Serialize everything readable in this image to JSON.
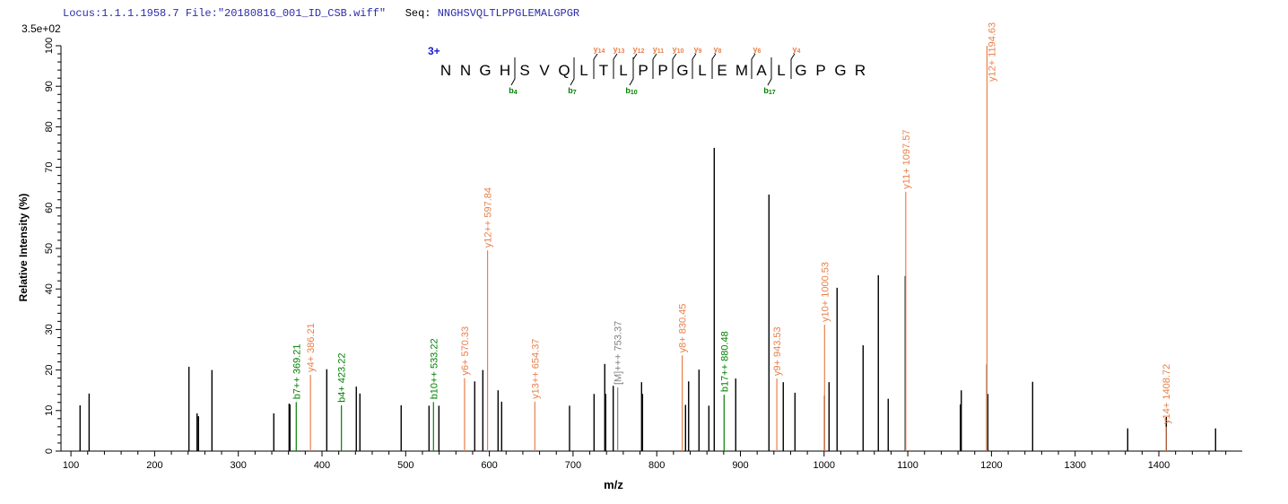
{
  "header": {
    "locus": "Locus:1.1.1.1958.7",
    "file_label": "File:",
    "file": "\"20180816_001_ID_CSB.wiff\"",
    "seq_label": "Seq:",
    "sequence": "NNGHSVQLTLPPGLEMALGPGR"
  },
  "colors": {
    "y_ion": "#e8804a",
    "b_ion": "#008000",
    "precursor": "#808080",
    "other": "#000000",
    "header": "#2b2bb0"
  },
  "chart_data": {
    "type": "bar",
    "subtype": "mass-spectrum",
    "max_intensity_label": "3.5e+02",
    "xlabel": "m/z",
    "ylabel": "Relative  Intensity (%)",
    "xlim": [
      88,
      1500
    ],
    "ylim": [
      0,
      100
    ],
    "xticks": [
      "100",
      "200",
      "300",
      "400",
      "500",
      "600",
      "700",
      "800",
      "900",
      "1000",
      "1100",
      "1200",
      "1300",
      "1400"
    ],
    "yticks": [
      "0",
      "10",
      "20",
      "30",
      "40",
      "50",
      "60",
      "70",
      "80",
      "90",
      "100"
    ],
    "grid": false,
    "fragment_map": {
      "charge": "3+",
      "residues": [
        "N",
        "N",
        "G",
        "H",
        "S",
        "V",
        "Q",
        "L",
        "T",
        "L",
        "P",
        "P",
        "G",
        "L",
        "E",
        "M",
        "A",
        "L",
        "G",
        "P",
        "G",
        "R"
      ],
      "b_ions": [
        {
          "label": "b",
          "sub": "4",
          "after": 4
        },
        {
          "label": "b",
          "sub": "7",
          "after": 7
        },
        {
          "label": "b",
          "sub": "10",
          "after": 10
        },
        {
          "label": "b",
          "sub": "17",
          "after": 17
        }
      ],
      "y_ions": [
        {
          "label": "y",
          "sub": "14",
          "after": 8
        },
        {
          "label": "y",
          "sub": "13",
          "after": 9
        },
        {
          "label": "y",
          "sub": "12",
          "after": 10
        },
        {
          "label": "y",
          "sub": "11",
          "after": 11
        },
        {
          "label": "y",
          "sub": "10",
          "after": 12
        },
        {
          "label": "y",
          "sub": "9",
          "after": 13
        },
        {
          "label": "y",
          "sub": "8",
          "after": 14
        },
        {
          "label": "y",
          "sub": "6",
          "after": 16
        },
        {
          "label": "y",
          "sub": "4",
          "after": 18
        }
      ]
    },
    "peaks": [
      {
        "mz": 110.9,
        "i": 11.3,
        "type": "other"
      },
      {
        "mz": 121.7,
        "i": 14.2,
        "type": "other"
      },
      {
        "mz": 241.0,
        "i": 20.8,
        "type": "other"
      },
      {
        "mz": 250.7,
        "i": 9.3,
        "type": "other"
      },
      {
        "mz": 252.4,
        "i": 8.6,
        "type": "other"
      },
      {
        "mz": 268.5,
        "i": 20.0,
        "type": "other"
      },
      {
        "mz": 342.4,
        "i": 9.3,
        "type": "other"
      },
      {
        "mz": 360.7,
        "i": 11.7,
        "type": "other"
      },
      {
        "mz": 361.7,
        "i": 11.5,
        "type": "other"
      },
      {
        "mz": 369.21,
        "i": 12.1,
        "type": "b_ion",
        "label": "b7++ 369.21"
      },
      {
        "mz": 386.21,
        "i": 18.8,
        "type": "y_ion",
        "label": "y4+ 386.21"
      },
      {
        "mz": 405.7,
        "i": 20.2,
        "type": "other"
      },
      {
        "mz": 423.22,
        "i": 11.3,
        "type": "b_ion",
        "label": "b4+ 423.22"
      },
      {
        "mz": 441.0,
        "i": 15.9,
        "type": "other"
      },
      {
        "mz": 445.3,
        "i": 14.2,
        "type": "other"
      },
      {
        "mz": 494.6,
        "i": 11.3,
        "type": "other"
      },
      {
        "mz": 527.9,
        "i": 11.2,
        "type": "other"
      },
      {
        "mz": 533.22,
        "i": 12.1,
        "type": "b_ion",
        "label": "b10++ 533.22"
      },
      {
        "mz": 539.7,
        "i": 11.2,
        "type": "other"
      },
      {
        "mz": 570.33,
        "i": 18.0,
        "type": "y_ion",
        "label": "y6+ 570.33"
      },
      {
        "mz": 582.5,
        "i": 17.2,
        "type": "other"
      },
      {
        "mz": 592.2,
        "i": 20.0,
        "type": "other"
      },
      {
        "mz": 597.84,
        "i": 49.5,
        "type": "y_ion",
        "label": "y12++ 597.84"
      },
      {
        "mz": 610.4,
        "i": 15.0,
        "type": "other"
      },
      {
        "mz": 614.7,
        "i": 12.2,
        "type": "other"
      },
      {
        "mz": 654.37,
        "i": 12.2,
        "type": "y_ion",
        "label": "y13++ 654.37"
      },
      {
        "mz": 695.8,
        "i": 11.2,
        "type": "other"
      },
      {
        "mz": 725.1,
        "i": 14.1,
        "type": "other"
      },
      {
        "mz": 737.9,
        "i": 21.5,
        "type": "other"
      },
      {
        "mz": 739.0,
        "i": 14.1,
        "type": "other"
      },
      {
        "mz": 748.0,
        "i": 16.1,
        "type": "other"
      },
      {
        "mz": 753.37,
        "i": 15.7,
        "type": "precursor",
        "label": "[M]+++ 753.37"
      },
      {
        "mz": 781.9,
        "i": 17.0,
        "type": "other"
      },
      {
        "mz": 783.0,
        "i": 14.1,
        "type": "other"
      },
      {
        "mz": 830.45,
        "i": 23.6,
        "type": "y_ion",
        "label": "y8+ 830.45"
      },
      {
        "mz": 834.4,
        "i": 11.4,
        "type": "other"
      },
      {
        "mz": 838.1,
        "i": 17.2,
        "type": "other"
      },
      {
        "mz": 850.5,
        "i": 20.1,
        "type": "other"
      },
      {
        "mz": 862.3,
        "i": 11.2,
        "type": "other"
      },
      {
        "mz": 868.7,
        "i": 74.8,
        "type": "other"
      },
      {
        "mz": 880.48,
        "i": 13.9,
        "type": "b_ion",
        "label": "b17++ 880.48"
      },
      {
        "mz": 894.4,
        "i": 17.9,
        "type": "other"
      },
      {
        "mz": 934.1,
        "i": 63.3,
        "type": "other"
      },
      {
        "mz": 943.53,
        "i": 17.9,
        "type": "y_ion",
        "label": "y9+ 943.53"
      },
      {
        "mz": 951.2,
        "i": 17.0,
        "type": "other"
      },
      {
        "mz": 965.2,
        "i": 14.4,
        "type": "other"
      },
      {
        "mz": 1000.53,
        "i": 31.2,
        "type": "y_ion",
        "label": "y10+ 1000.53"
      },
      {
        "mz": 1000.5,
        "i": 13.7,
        "type": "other"
      },
      {
        "mz": 1005.9,
        "i": 17.0,
        "type": "other"
      },
      {
        "mz": 1015.5,
        "i": 40.3,
        "type": "other"
      },
      {
        "mz": 1046.6,
        "i": 26.1,
        "type": "other"
      },
      {
        "mz": 1064.8,
        "i": 43.4,
        "type": "other"
      },
      {
        "mz": 1076.6,
        "i": 12.9,
        "type": "other"
      },
      {
        "mz": 1097.57,
        "i": 64.0,
        "type": "y_ion",
        "label": "y11+ 1097.57"
      },
      {
        "mz": 1097.0,
        "i": 43.2,
        "type": "other"
      },
      {
        "mz": 1162.8,
        "i": 11.5,
        "type": "other"
      },
      {
        "mz": 1163.9,
        "i": 15.0,
        "type": "other"
      },
      {
        "mz": 1194.63,
        "i": 100.0,
        "type": "y_ion",
        "label": "y12+ 1194.63"
      },
      {
        "mz": 1194.5,
        "i": 21.4,
        "type": "other"
      },
      {
        "mz": 1195.6,
        "i": 14.1,
        "type": "other"
      },
      {
        "mz": 1249.2,
        "i": 17.1,
        "type": "other"
      },
      {
        "mz": 1362.8,
        "i": 5.6,
        "type": "other"
      },
      {
        "mz": 1408.72,
        "i": 6.0,
        "type": "y_ion",
        "label": "y14+ 1408.72"
      },
      {
        "mz": 1408.9,
        "i": 8.4,
        "type": "other"
      },
      {
        "mz": 1467.8,
        "i": 5.6,
        "type": "other"
      }
    ]
  }
}
